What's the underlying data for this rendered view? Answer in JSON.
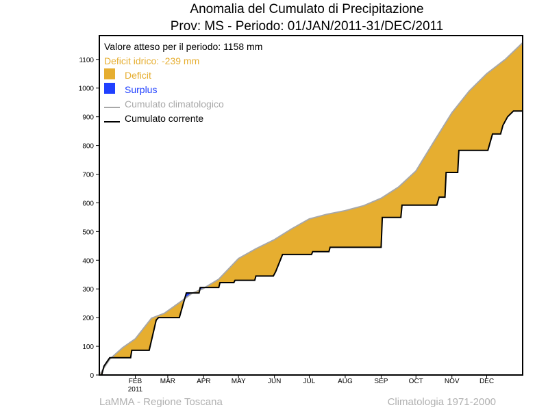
{
  "chart_data": {
    "type": "area",
    "title": "Anomalia del Cumulato di Precipitazione",
    "subtitle": "Prov: MS - Periodo: 01/JAN/2011-31/DEC/2011",
    "xlabel": "",
    "ylabel": "",
    "xlim": [
      0,
      365
    ],
    "ylim": [
      0,
      1183
    ],
    "yticks": [
      0,
      100,
      200,
      300,
      400,
      500,
      600,
      700,
      800,
      900,
      1000,
      1100
    ],
    "xticks": [
      {
        "day": 31,
        "label": "FEB"
      },
      {
        "day": 59,
        "label": "MAR"
      },
      {
        "day": 90,
        "label": "APR"
      },
      {
        "day": 120,
        "label": "MAY"
      },
      {
        "day": 151,
        "label": "JUN"
      },
      {
        "day": 181,
        "label": "JUL"
      },
      {
        "day": 212,
        "label": "AUG"
      },
      {
        "day": 243,
        "label": "SEP"
      },
      {
        "day": 273,
        "label": "OCT"
      },
      {
        "day": 304,
        "label": "NOV"
      },
      {
        "day": 334,
        "label": "DEC"
      }
    ],
    "year_label": "2011",
    "annotations": {
      "expected": "Valore atteso per il periodo: 1158 mm",
      "deficit": "Deficit idrico: -239 mm"
    },
    "legend": {
      "placement": "top-left",
      "entries": [
        {
          "label": "Deficit",
          "kind": "fill",
          "color": "#e6ae30"
        },
        {
          "label": "Surplus",
          "kind": "fill",
          "color": "#2040ff"
        },
        {
          "label": "Cumulato climatologico",
          "kind": "line",
          "color": "#a8a8a8"
        },
        {
          "label": "Cumulato corrente",
          "kind": "line",
          "color": "#000000"
        }
      ]
    },
    "series": [
      {
        "name": "Cumulato climatologico",
        "color": "#a8a8a8",
        "x": [
          0,
          9,
          20,
          31,
          45,
          56,
          71,
          80,
          89,
          103,
          120,
          135,
          151,
          166,
          181,
          196,
          212,
          228,
          243,
          258,
          273,
          288,
          304,
          319,
          334,
          350,
          365
        ],
        "y": [
          0,
          55,
          95,
          126,
          198,
          215,
          258,
          285,
          300,
          334,
          406,
          440,
          472,
          510,
          544,
          560,
          573,
          590,
          616,
          655,
          711,
          810,
          914,
          990,
          1050,
          1100,
          1158
        ]
      },
      {
        "name": "Cumulato corrente",
        "color": "#000000",
        "x": [
          0,
          2,
          4,
          9,
          27,
          28,
          43,
          49,
          51,
          69,
          75,
          86,
          87,
          103,
          104,
          116,
          117,
          134,
          135,
          150,
          152,
          158,
          183,
          184,
          198,
          199,
          243,
          244,
          260,
          261,
          291,
          293,
          298,
          299,
          309,
          310,
          335,
          339,
          346,
          348,
          352,
          357,
          365
        ],
        "y": [
          0,
          0,
          31,
          60,
          60,
          86,
          86,
          191,
          200,
          200,
          286,
          286,
          305,
          305,
          322,
          322,
          330,
          330,
          345,
          345,
          360,
          420,
          420,
          430,
          430,
          445,
          445,
          549,
          549,
          592,
          592,
          620,
          620,
          706,
          706,
          783,
          783,
          840,
          840,
          870,
          900,
          920,
          920
        ]
      }
    ]
  },
  "footer": {
    "left": "LaMMA - Regione Toscana",
    "right": "Climatologia 1971-2000"
  }
}
